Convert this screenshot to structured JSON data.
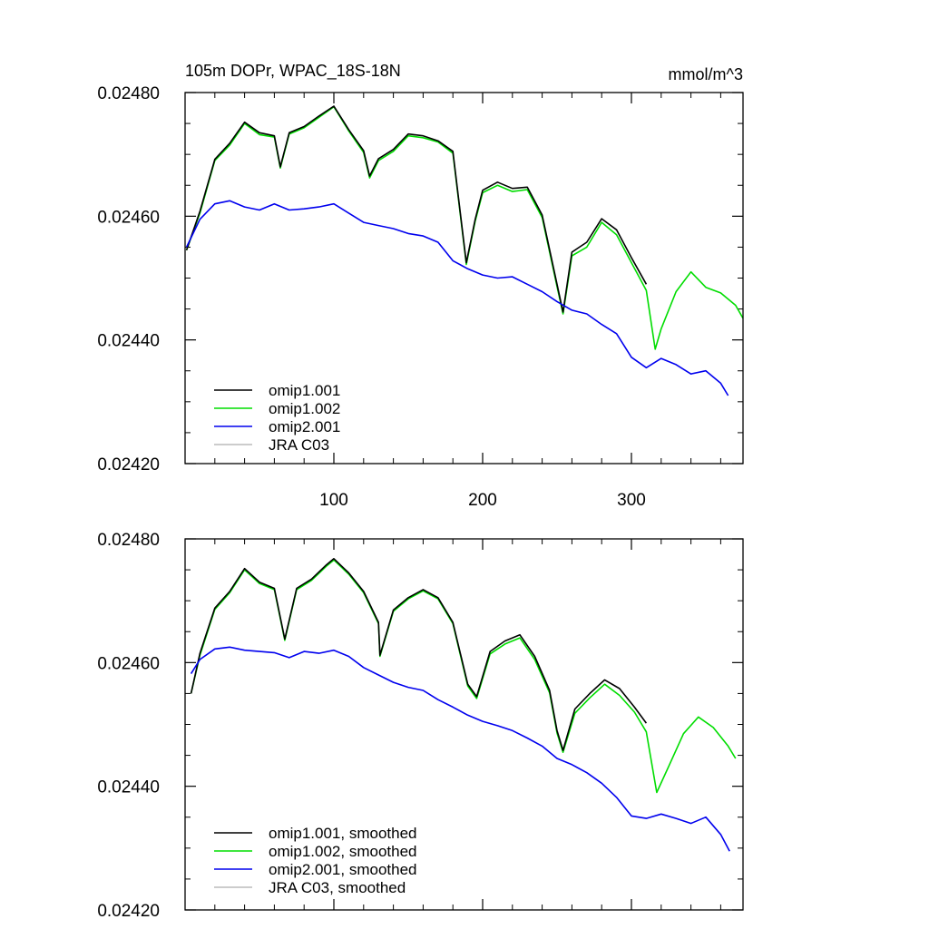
{
  "chart_data": [
    {
      "type": "line",
      "title": "105m DOPr, WPAC_18S-18N",
      "units": "mmol/m^3",
      "xlim": [
        0,
        375
      ],
      "ylim": [
        0.0242,
        0.0248
      ],
      "x_ticks": [
        100,
        200,
        300
      ],
      "y_ticks": [
        "0.02420",
        "0.02440",
        "0.02460",
        "0.02480"
      ],
      "legend_position": "bottom-left",
      "series": [
        {
          "name": "omip1.001",
          "color": "#000000",
          "x": [
            1,
            10,
            20,
            30,
            40,
            50,
            60,
            64,
            70,
            80,
            90,
            100,
            110,
            120,
            124,
            130,
            140,
            150,
            160,
            170,
            180,
            189,
            195,
            200,
            210,
            220,
            230,
            240,
            250,
            254,
            260,
            270,
            280,
            290,
            300,
            310
          ],
          "y": [
            0.024545,
            0.024608,
            0.024692,
            0.024718,
            0.024752,
            0.024735,
            0.02473,
            0.02468,
            0.024735,
            0.024745,
            0.024762,
            0.024778,
            0.02474,
            0.024706,
            0.024665,
            0.024693,
            0.024708,
            0.024733,
            0.02473,
            0.024722,
            0.024705,
            0.024525,
            0.024595,
            0.024642,
            0.024655,
            0.024645,
            0.024647,
            0.024602,
            0.02449,
            0.024445,
            0.024542,
            0.024558,
            0.024596,
            0.024578,
            0.024533,
            0.02449
          ]
        },
        {
          "name": "omip1.002",
          "color": "#00dd00",
          "x": [
            1,
            10,
            20,
            30,
            40,
            50,
            60,
            64,
            70,
            80,
            90,
            100,
            110,
            120,
            124,
            130,
            140,
            150,
            160,
            170,
            180,
            189,
            195,
            200,
            210,
            220,
            230,
            240,
            250,
            254,
            260,
            270,
            280,
            290,
            300,
            310,
            316,
            320,
            330,
            340,
            350,
            360,
            370,
            375
          ],
          "y": [
            0.024545,
            0.024605,
            0.02469,
            0.024715,
            0.02475,
            0.024732,
            0.024728,
            0.024678,
            0.024733,
            0.024743,
            0.02476,
            0.024777,
            0.024738,
            0.024703,
            0.024662,
            0.02469,
            0.024705,
            0.02473,
            0.024727,
            0.02472,
            0.024702,
            0.024522,
            0.024592,
            0.024638,
            0.02465,
            0.02464,
            0.024643,
            0.024598,
            0.024486,
            0.024442,
            0.024536,
            0.02455,
            0.02459,
            0.02457,
            0.024525,
            0.02448,
            0.024385,
            0.024418,
            0.024478,
            0.02451,
            0.024485,
            0.024476,
            0.024456,
            0.024435
          ]
        },
        {
          "name": "omip2.001",
          "color": "#0000ee",
          "x": [
            1,
            10,
            20,
            30,
            40,
            50,
            60,
            70,
            80,
            90,
            100,
            110,
            120,
            130,
            140,
            150,
            160,
            170,
            180,
            190,
            200,
            210,
            220,
            230,
            240,
            250,
            260,
            270,
            280,
            290,
            300,
            310,
            320,
            330,
            340,
            350,
            360,
            365
          ],
          "y": [
            0.02455,
            0.024595,
            0.02462,
            0.024625,
            0.024615,
            0.02461,
            0.02462,
            0.02461,
            0.024612,
            0.024615,
            0.02462,
            0.024605,
            0.02459,
            0.024585,
            0.02458,
            0.024572,
            0.024568,
            0.024558,
            0.024528,
            0.024515,
            0.024505,
            0.0245,
            0.024502,
            0.02449,
            0.024478,
            0.024462,
            0.024448,
            0.024442,
            0.024425,
            0.02441,
            0.024372,
            0.024355,
            0.02437,
            0.02436,
            0.024345,
            0.02435,
            0.02433,
            0.02431
          ]
        },
        {
          "name": "JRA C03",
          "color": "#bbbbbb",
          "x": [],
          "y": []
        }
      ]
    },
    {
      "type": "line",
      "title": "",
      "xlim": [
        0,
        375
      ],
      "ylim": [
        0.0242,
        0.0248
      ],
      "x_ticks": [
        100,
        200,
        300
      ],
      "y_ticks": [
        "0.02420",
        "0.02440",
        "0.02460",
        "0.02480"
      ],
      "legend_position": "bottom-left",
      "series": [
        {
          "name": "omip1.001, smoothed",
          "color": "#000000",
          "x": [
            4,
            10,
            20,
            30,
            40,
            50,
            60,
            67,
            75,
            85,
            95,
            100,
            110,
            120,
            130,
            131,
            140,
            150,
            160,
            170,
            180,
            190,
            196,
            205,
            215,
            225,
            235,
            245,
            250,
            254,
            262,
            272,
            282,
            292,
            302,
            310
          ],
          "y": [
            0.02455,
            0.024615,
            0.024688,
            0.024715,
            0.024752,
            0.02473,
            0.02472,
            0.024638,
            0.02472,
            0.024735,
            0.024758,
            0.024768,
            0.024745,
            0.024715,
            0.024665,
            0.024612,
            0.024685,
            0.024705,
            0.024718,
            0.024705,
            0.024665,
            0.024565,
            0.024545,
            0.024618,
            0.024635,
            0.024645,
            0.02461,
            0.024555,
            0.02449,
            0.024458,
            0.024525,
            0.02455,
            0.024572,
            0.024558,
            0.024528,
            0.024502
          ]
        },
        {
          "name": "omip1.002, smoothed",
          "color": "#00dd00",
          "x": [
            4,
            10,
            20,
            30,
            40,
            50,
            60,
            67,
            75,
            85,
            95,
            100,
            110,
            120,
            130,
            131,
            140,
            150,
            160,
            170,
            180,
            190,
            196,
            205,
            215,
            225,
            235,
            245,
            250,
            254,
            262,
            272,
            282,
            292,
            302,
            310,
            317,
            325,
            335,
            345,
            355,
            365,
            370
          ],
          "y": [
            0.02455,
            0.024612,
            0.024686,
            0.024713,
            0.02475,
            0.024728,
            0.024718,
            0.024636,
            0.024718,
            0.024733,
            0.024756,
            0.024766,
            0.024743,
            0.024713,
            0.024663,
            0.02461,
            0.024683,
            0.024703,
            0.024716,
            0.024703,
            0.024663,
            0.024562,
            0.024542,
            0.024614,
            0.02463,
            0.02464,
            0.024605,
            0.024551,
            0.024486,
            0.024455,
            0.024518,
            0.024543,
            0.024565,
            0.024547,
            0.02452,
            0.024488,
            0.02439,
            0.024432,
            0.024485,
            0.024512,
            0.024495,
            0.024465,
            0.024445
          ]
        },
        {
          "name": "omip2.001, smoothed",
          "color": "#0000ee",
          "x": [
            4,
            10,
            20,
            30,
            40,
            50,
            60,
            70,
            80,
            90,
            100,
            110,
            120,
            130,
            140,
            150,
            160,
            170,
            180,
            190,
            200,
            210,
            220,
            230,
            240,
            250,
            260,
            270,
            280,
            290,
            300,
            310,
            320,
            330,
            340,
            350,
            360,
            366
          ],
          "y": [
            0.024582,
            0.024605,
            0.024622,
            0.024625,
            0.02462,
            0.024618,
            0.024616,
            0.024608,
            0.024618,
            0.024615,
            0.02462,
            0.02461,
            0.024592,
            0.02458,
            0.024568,
            0.02456,
            0.024555,
            0.02454,
            0.024528,
            0.024515,
            0.024505,
            0.024498,
            0.02449,
            0.024478,
            0.024465,
            0.024445,
            0.024435,
            0.024422,
            0.024405,
            0.024382,
            0.024352,
            0.024348,
            0.024355,
            0.024348,
            0.02434,
            0.02435,
            0.024322,
            0.024295
          ]
        },
        {
          "name": "JRA C03, smoothed",
          "color": "#bbbbbb",
          "x": [],
          "y": []
        }
      ]
    }
  ]
}
